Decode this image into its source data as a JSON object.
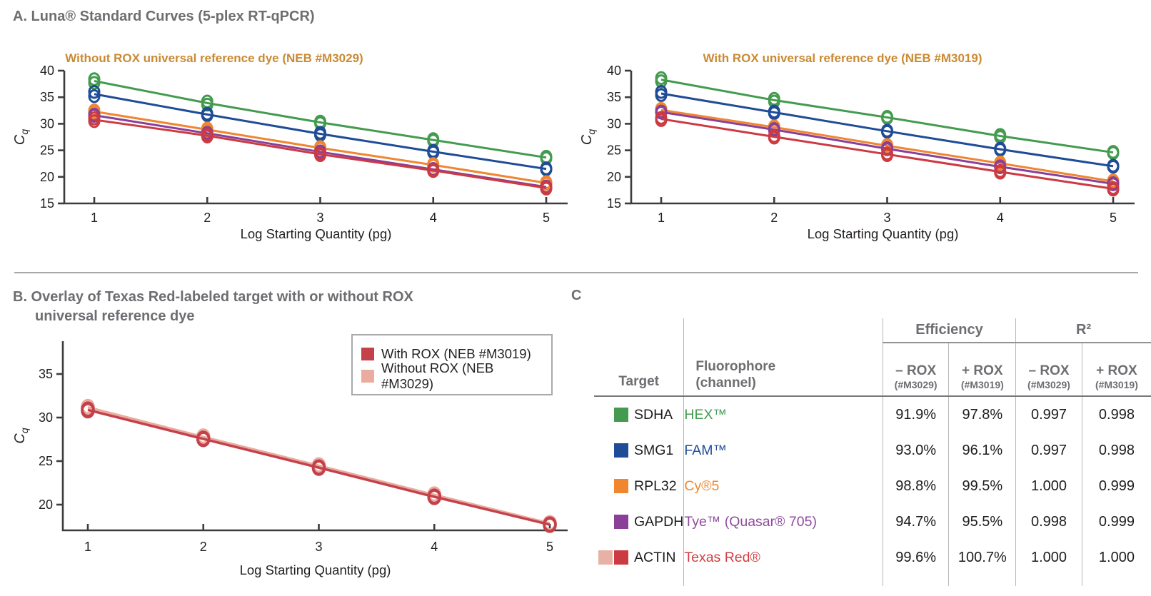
{
  "panels": {
    "a": {
      "heading": "A. Luna® Standard Curves (5-plex RT-qPCR)"
    },
    "b": {
      "heading_line1": "B. Overlay of Texas Red-labeled target with or without ROX",
      "heading_line2": "universal reference dye",
      "legend": [
        {
          "label": "With ROX (NEB #M3019)",
          "color": "#c4414b"
        },
        {
          "label": "Without ROX (NEB #M3029)",
          "color": "#e9ac9f"
        }
      ]
    },
    "c": {
      "label": "C"
    }
  },
  "chart_data": [
    {
      "id": "chartA1",
      "type": "line",
      "title": "Without ROX universal reference dye (NEB #M3029)",
      "title_color": "#c98a33",
      "xlabel": "Log Starting Quantity (pg)",
      "ylabel": "Cq",
      "xticks": [
        1,
        2,
        3,
        4,
        5
      ],
      "yticks": [
        15,
        20,
        25,
        30,
        35,
        40
      ],
      "xlim": [
        0.5,
        5.4
      ],
      "ylim": [
        15,
        40
      ],
      "grid": false,
      "series": [
        {
          "name": "SDHA (HEX)",
          "color": "#449b4f",
          "x": [
            1,
            2,
            3,
            4,
            5
          ],
          "reps": [
            [
              38.4,
              37.7
            ],
            [
              34.2,
              33.6
            ],
            [
              30.4,
              30.1
            ],
            [
              27.1,
              26.8
            ],
            [
              23.8,
              23.5
            ]
          ]
        },
        {
          "name": "SMG1 (FAM)",
          "color": "#1f4c97",
          "x": [
            1,
            2,
            3,
            4,
            5
          ],
          "reps": [
            [
              36.0,
              35.2
            ],
            [
              31.9,
              31.6
            ],
            [
              28.3,
              27.9
            ],
            [
              24.9,
              24.6
            ],
            [
              21.6,
              21.4
            ]
          ]
        },
        {
          "name": "RPL32 (Cy5)",
          "color": "#f0862f",
          "x": [
            1,
            2,
            3,
            4,
            5
          ],
          "reps": [
            [
              32.5,
              32.1
            ],
            [
              29.1,
              28.7
            ],
            [
              25.6,
              25.3
            ],
            [
              22.4,
              22.1
            ],
            [
              19.0,
              18.7
            ]
          ]
        },
        {
          "name": "GAPDH (Tye / Quasar 705)",
          "color": "#8a3f98",
          "x": [
            1,
            2,
            3,
            4,
            5
          ],
          "reps": [
            [
              31.7,
              31.5
            ],
            [
              28.3,
              28.1
            ],
            [
              24.8,
              24.6
            ],
            [
              21.5,
              21.3
            ],
            [
              18.2,
              18.0
            ]
          ]
        },
        {
          "name": "ACTIN (Texas Red)",
          "color": "#cc3a42",
          "x": [
            1,
            2,
            3,
            4,
            5
          ],
          "reps": [
            [
              31.0,
              30.5
            ],
            [
              27.9,
              27.6
            ],
            [
              24.4,
              24.1
            ],
            [
              21.3,
              21.1
            ],
            [
              18.0,
              17.8
            ]
          ]
        }
      ]
    },
    {
      "id": "chartA2",
      "type": "line",
      "title": "With ROX universal reference dye (NEB #M3019)",
      "title_color": "#c98a33",
      "xlabel": "Log Starting Quantity (pg)",
      "ylabel": "Cq",
      "xticks": [
        1,
        2,
        3,
        4,
        5
      ],
      "yticks": [
        15,
        20,
        25,
        30,
        35,
        40
      ],
      "xlim": [
        0.5,
        5.4
      ],
      "ylim": [
        15,
        40
      ],
      "grid": false,
      "series": [
        {
          "name": "SDHA (HEX)",
          "color": "#449b4f",
          "x": [
            1,
            2,
            3,
            4,
            5
          ],
          "reps": [
            [
              38.6,
              38.0
            ],
            [
              34.7,
              34.2
            ],
            [
              31.3,
              31.1
            ],
            [
              27.9,
              27.5
            ],
            [
              24.7,
              24.5
            ]
          ]
        },
        {
          "name": "SMG1 (FAM)",
          "color": "#1f4c97",
          "x": [
            1,
            2,
            3,
            4,
            5
          ],
          "reps": [
            [
              36.0,
              35.4
            ],
            [
              32.3,
              32.0
            ],
            [
              28.7,
              28.5
            ],
            [
              25.3,
              25.1
            ],
            [
              22.1,
              21.9
            ]
          ]
        },
        {
          "name": "RPL32 (Cy5)",
          "color": "#f0862f",
          "x": [
            1,
            2,
            3,
            4,
            5
          ],
          "reps": [
            [
              32.8,
              32.4
            ],
            [
              29.5,
              29.2
            ],
            [
              26.0,
              25.7
            ],
            [
              22.7,
              22.4
            ],
            [
              19.3,
              19.0
            ]
          ]
        },
        {
          "name": "GAPDH (Tye / Quasar 705)",
          "color": "#8a3f98",
          "x": [
            1,
            2,
            3,
            4,
            5
          ],
          "reps": [
            [
              32.3,
              32.1
            ],
            [
              29.0,
              28.8
            ],
            [
              25.4,
              25.2
            ],
            [
              22.0,
              21.8
            ],
            [
              18.8,
              18.6
            ]
          ]
        },
        {
          "name": "ACTIN (Texas Red)",
          "color": "#cc3a42",
          "x": [
            1,
            2,
            3,
            4,
            5
          ],
          "reps": [
            [
              31.1,
              30.7
            ],
            [
              27.7,
              27.4
            ],
            [
              24.4,
              24.1
            ],
            [
              21.1,
              20.8
            ],
            [
              17.9,
              17.6
            ]
          ]
        }
      ]
    },
    {
      "id": "chartB",
      "type": "line",
      "title": "",
      "xlabel": "Log Starting Quantity (pg)",
      "ylabel": "Cq",
      "xticks": [
        1,
        2,
        3,
        4,
        5
      ],
      "yticks": [
        20,
        25,
        30,
        35
      ],
      "xlim": [
        0.5,
        5.4
      ],
      "ylim": [
        17,
        38.7
      ],
      "grid": false,
      "legend_position": "upper right",
      "series": [
        {
          "name": "Without ROX (NEB #M3029)",
          "color": "#e9ac9f",
          "x": [
            1,
            2,
            3,
            4,
            5
          ],
          "reps": [
            [
              31.25,
              31.1
            ],
            [
              27.85,
              27.7
            ],
            [
              24.55,
              24.4
            ],
            [
              21.2,
              21.05
            ],
            [
              17.9,
              17.8
            ]
          ]
        },
        {
          "name": "With ROX (NEB #M3019)",
          "color": "#c4414b",
          "x": [
            1,
            2,
            3,
            4,
            5
          ],
          "reps": [
            [
              30.95,
              30.8
            ],
            [
              27.6,
              27.5
            ],
            [
              24.3,
              24.2
            ],
            [
              20.95,
              20.85
            ],
            [
              17.75,
              17.65
            ]
          ]
        }
      ]
    },
    {
      "id": "tableC",
      "type": "table",
      "header": {
        "target": "Target",
        "fluorophore_line1": "Fluorophore",
        "fluorophore_line2": "(channel)",
        "groups": [
          {
            "label": "Efficiency",
            "subcols": [
              {
                "top": "– ROX",
                "bottom": "(#M3029)"
              },
              {
                "top": "+ ROX",
                "bottom": "(#M3019)"
              }
            ]
          },
          {
            "label": "R²",
            "subcols": [
              {
                "top": "– ROX",
                "bottom": "(#M3029)"
              },
              {
                "top": "+ ROX",
                "bottom": "(#M3019)"
              }
            ]
          }
        ]
      },
      "rows": [
        {
          "target": "SDHA",
          "swatches": [
            "#449b4f"
          ],
          "fluorophore": "HEX™",
          "fluor_color": "#449b4f",
          "eff_minus": "91.9%",
          "eff_plus": "97.8%",
          "r2_minus": "0.997",
          "r2_plus": "0.998"
        },
        {
          "target": "SMG1",
          "swatches": [
            "#1f4c97"
          ],
          "fluorophore": "FAM™",
          "fluor_color": "#1f4c97",
          "eff_minus": "93.0%",
          "eff_plus": "96.1%",
          "r2_minus": "0.997",
          "r2_plus": "0.998"
        },
        {
          "target": "RPL32",
          "swatches": [
            "#f0862f"
          ],
          "fluorophore": "Cy®5",
          "fluor_color": "#f0862f",
          "eff_minus": "98.8%",
          "eff_plus": "99.5%",
          "r2_minus": "1.000",
          "r2_plus": "0.999"
        },
        {
          "target": "GAPDH",
          "swatches": [
            "#8a3f98"
          ],
          "fluorophore": "Tye™ (Quasar® 705)",
          "fluor_color": "#8f4a9e",
          "eff_minus": "94.7%",
          "eff_plus": "95.5%",
          "r2_minus": "0.998",
          "r2_plus": "0.999"
        },
        {
          "target": "ACTIN",
          "swatches": [
            "#e8b1a6",
            "#cc3a42"
          ],
          "fluorophore": "Texas Red®",
          "fluor_color": "#d03f44",
          "eff_minus": "99.6%",
          "eff_plus": "100.7%",
          "r2_minus": "1.000",
          "r2_plus": "1.000"
        }
      ]
    }
  ]
}
